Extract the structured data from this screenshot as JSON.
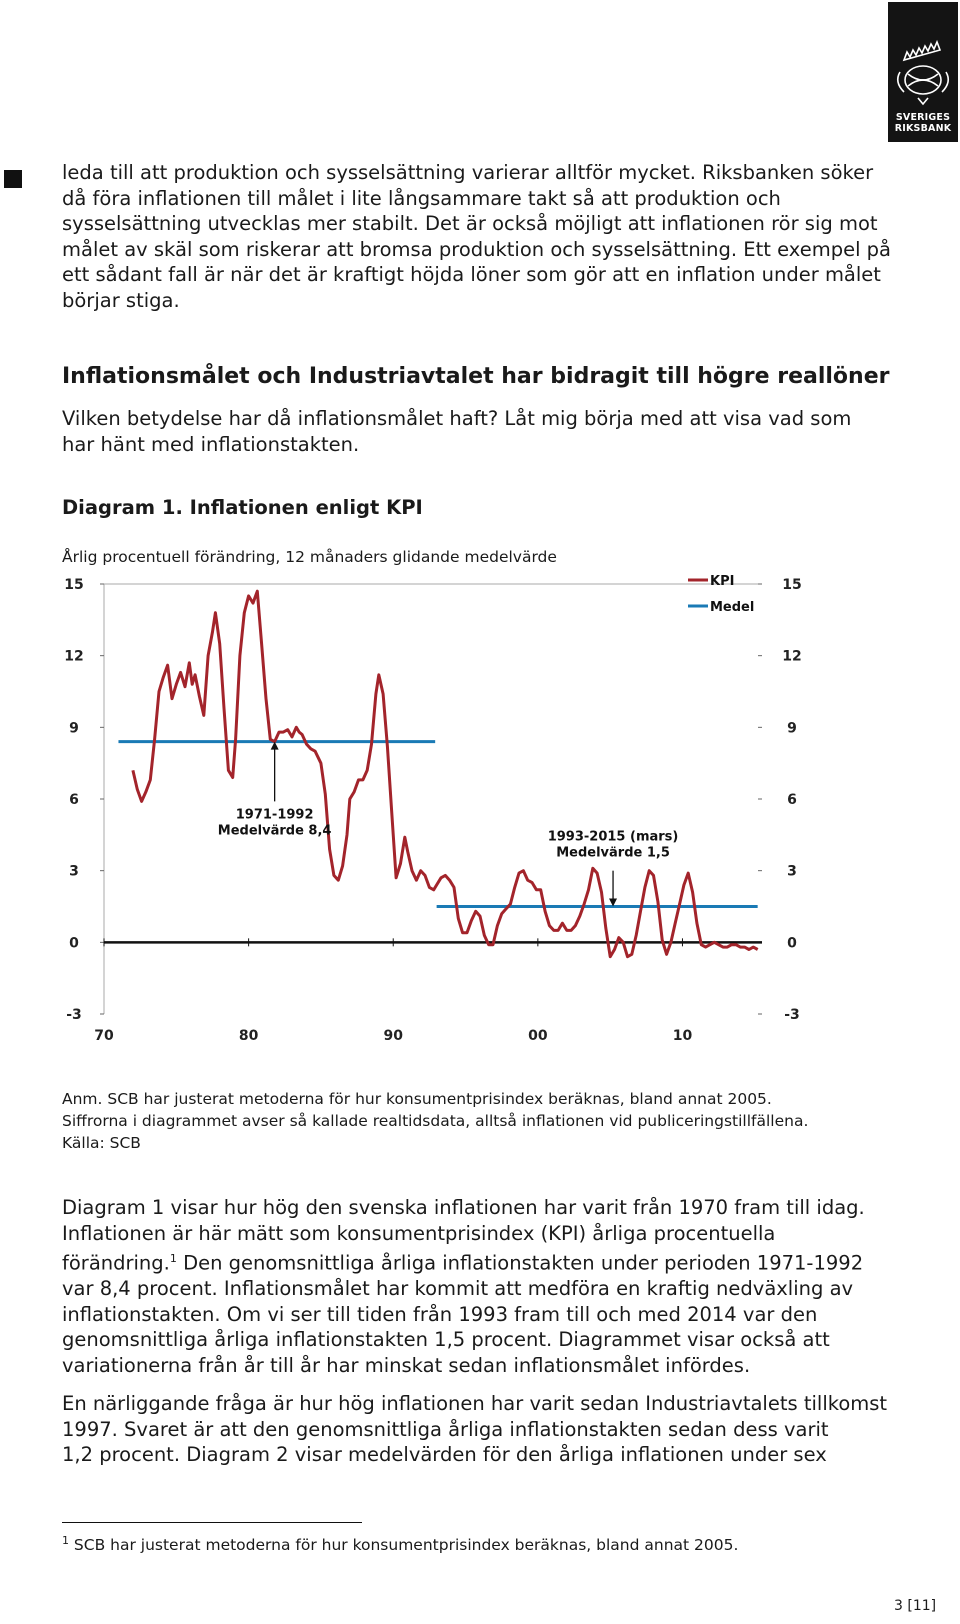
{
  "logo": {
    "line1": "SVERIGES",
    "line2": "RIKSBANK"
  },
  "intro_lines": [
    "leda till att produktion och sysselsättning varierar alltför mycket. Riksbanken söker",
    "då föra inflationen till målet i lite långsammare takt så att produktion och",
    "sysselsättning utvecklas mer stabilt. Det är också möjligt att inflationen rör sig mot",
    "målet av skäl som riskerar att bromsa produktion och sysselsättning. Ett exempel på",
    "ett sådant fall är när det är kraftigt höjda löner som gör att en inflation under målet",
    "börjar stiga."
  ],
  "section_heading": "Inflationsmålet och Industriavtalet har bidragit till högre reallöner",
  "section_lines": [
    "Vilken betydelse har då inflationsmålet haft? Låt mig börja med att visa vad som",
    "har hänt med inflationstakten."
  ],
  "diagram_title": "Diagram 1. Inflationen enligt KPI",
  "diagram_subtitle": "Årlig procentuell förändring, 12 månaders glidande medelvärde",
  "chart_data": {
    "type": "line",
    "title": "Diagram 1. Inflationen enligt KPI",
    "ylabel": "Årlig procentuell förändring, 12 månaders glidande medelvärde",
    "ylim": [
      -3,
      15
    ],
    "yticks": [
      "15",
      "12",
      "9",
      "6",
      "3",
      "0",
      "-3"
    ],
    "xlim": [
      1970,
      2015.5
    ],
    "xtick_values": [
      1970,
      1980,
      1990,
      2000,
      2010
    ],
    "xticks": [
      "70",
      "80",
      "90",
      "00",
      "10"
    ],
    "legend_position": "top-right",
    "colors": {
      "kpi": "#a3242b",
      "medel": "#1a7ab5"
    },
    "series": [
      {
        "name": "KPI",
        "x": [
          1972.0,
          1972.3,
          1972.6,
          1972.9,
          1973.2,
          1973.5,
          1973.8,
          1974.1,
          1974.4,
          1974.7,
          1975.0,
          1975.3,
          1975.6,
          1975.9,
          1976.1,
          1976.3,
          1976.6,
          1976.9,
          1977.2,
          1977.5,
          1977.7,
          1978.0,
          1978.3,
          1978.6,
          1978.9,
          1979.1,
          1979.4,
          1979.7,
          1980.0,
          1980.3,
          1980.6,
          1980.9,
          1981.2,
          1981.5,
          1981.8,
          1982.1,
          1982.4,
          1982.7,
          1983.0,
          1983.3,
          1983.5,
          1983.7,
          1984.0,
          1984.3,
          1984.6,
          1985.0,
          1985.3,
          1985.6,
          1985.9,
          1986.2,
          1986.5,
          1986.8,
          1987.0,
          1987.3,
          1987.6,
          1987.9,
          1988.2,
          1988.5,
          1988.8,
          1989.0,
          1989.3,
          1989.6,
          1989.9,
          1990.2,
          1990.5,
          1990.8,
          1991.0,
          1991.3,
          1991.6,
          1991.9,
          1992.2,
          1992.5,
          1992.8,
          1993.0,
          1993.3,
          1993.6,
          1993.9,
          1994.2,
          1994.5,
          1994.8,
          1995.1,
          1995.4,
          1995.7,
          1996.0,
          1996.3,
          1996.6,
          1996.9,
          1997.2,
          1997.5,
          1997.8,
          1998.1,
          1998.4,
          1998.7,
          1999.0,
          1999.3,
          1999.6,
          1999.9,
          2000.2,
          2000.5,
          2000.8,
          2001.1,
          2001.4,
          2001.7,
          2002.0,
          2002.3,
          2002.6,
          2002.9,
          2003.2,
          2003.5,
          2003.8,
          2004.1,
          2004.4,
          2004.7,
          2005.0,
          2005.3,
          2005.6,
          2005.9,
          2006.2,
          2006.5,
          2006.8,
          2007.1,
          2007.4,
          2007.7,
          2008.0,
          2008.3,
          2008.6,
          2008.9,
          2009.2,
          2009.5,
          2009.8,
          2010.1,
          2010.4,
          2010.7,
          2011.0,
          2011.3,
          2011.6,
          2011.9,
          2012.2,
          2012.5,
          2012.8,
          2013.1,
          2013.4,
          2013.7,
          2014.0,
          2014.3,
          2014.6,
          2014.9,
          2015.2
        ],
        "y": [
          7.2,
          6.4,
          5.9,
          6.3,
          6.8,
          8.5,
          10.5,
          11.1,
          11.6,
          10.2,
          10.8,
          11.3,
          10.7,
          11.7,
          10.8,
          11.2,
          10.3,
          9.5,
          12.0,
          13.0,
          13.8,
          12.5,
          9.8,
          7.2,
          6.9,
          8.5,
          12.0,
          13.8,
          14.5,
          14.2,
          14.7,
          12.5,
          10.2,
          8.5,
          8.4,
          8.8,
          8.8,
          8.9,
          8.6,
          9.0,
          8.8,
          8.7,
          8.3,
          8.1,
          8.0,
          7.5,
          6.2,
          3.9,
          2.8,
          2.6,
          3.2,
          4.5,
          6.0,
          6.3,
          6.8,
          6.8,
          7.2,
          8.3,
          10.4,
          11.2,
          10.4,
          8.2,
          5.4,
          2.7,
          3.3,
          4.4,
          3.8,
          3.0,
          2.6,
          3.0,
          2.8,
          2.3,
          2.2,
          2.4,
          2.7,
          2.8,
          2.6,
          2.3,
          1.0,
          0.4,
          0.4,
          0.9,
          1.3,
          1.1,
          0.3,
          -0.1,
          -0.1,
          0.7,
          1.2,
          1.4,
          1.6,
          2.3,
          2.9,
          3.0,
          2.6,
          2.5,
          2.2,
          2.2,
          1.3,
          0.7,
          0.5,
          0.5,
          0.8,
          0.5,
          0.5,
          0.7,
          1.1,
          1.6,
          2.2,
          3.1,
          2.9,
          2.1,
          0.6,
          -0.6,
          -0.3,
          0.2,
          0.0,
          -0.6,
          -0.5,
          0.3,
          1.3,
          2.3,
          3.0,
          2.8,
          1.7,
          0.1,
          -0.5,
          0.0,
          0.8,
          1.6,
          2.4,
          2.9,
          2.1,
          0.8,
          -0.1,
          -0.2,
          -0.1,
          0.0,
          -0.1,
          -0.2,
          -0.2,
          -0.1,
          -0.1,
          -0.2,
          -0.2,
          -0.3,
          -0.2,
          -0.3
        ]
      },
      {
        "name": "Medel",
        "segments": [
          {
            "x": [
              1971,
              1992.9
            ],
            "y": 8.4
          },
          {
            "x": [
              1993,
              2015.2
            ],
            "y": 1.5
          }
        ]
      }
    ],
    "annotations": [
      {
        "lines": [
          "1971-1992",
          "Medelvärde 8,4"
        ],
        "arrow_x": 1981.8,
        "arrow_from": 5.9,
        "arrow_to": 8.4
      },
      {
        "lines": [
          "1993-2015 (mars)",
          "Medelvärde 1,5"
        ],
        "arrow_x": 2005.2,
        "arrow_from": 3.0,
        "arrow_to": 1.5
      }
    ]
  },
  "notes": [
    "Anm. SCB har justerat metoderna för hur konsumentprisindex beräknas, bland annat 2005.",
    "Siffrorna i diagrammet avser så kallade realtidsdata, alltså inflationen vid publiceringstillfällena.",
    "Källa: SCB"
  ],
  "body1_lines": [
    "Diagram 1 visar hur hög den svenska inflationen har varit från 1970 fram till idag.",
    "Inflationen är här mätt som konsumentprisindex (KPI) årliga procentuella",
    "förändring.",
    "1",
    " Den genomsnittliga årliga inflationstakten under perioden 1971-1992",
    "var 8,4 procent. Inflationsmålet har kommit att medföra en kraftig nedväxling av",
    "inflationstakten. Om vi ser till tiden från 1993 fram till och med 2014 var den",
    "genomsnittliga årliga inflationstakten 1,5 procent. Diagrammet visar också att",
    "variationerna från år till år har minskat sedan inflationsmålet infördes."
  ],
  "body2_lines": [
    "En närliggande fråga är hur hög inflationen har varit sedan Industriavtalets tillkomst",
    "1997. Svaret är att den genomsnittliga årliga inflationstakten sedan dess varit",
    "1,2 procent. Diagram 2 visar medelvärden för den årliga inflationen under sex"
  ],
  "footnote": {
    "marker": "1",
    "text": " SCB har justerat metoderna för hur konsumentprisindex beräknas, bland annat 2005."
  },
  "page_number": "3 [11]"
}
